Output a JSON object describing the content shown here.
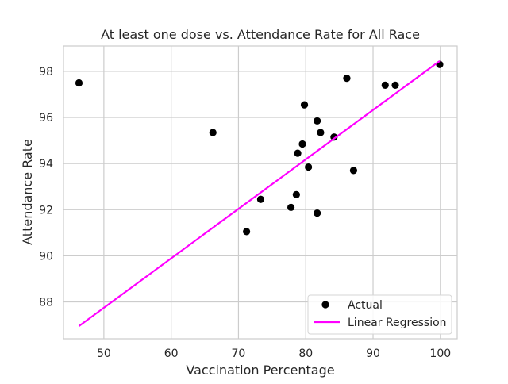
{
  "chart_data": {
    "type": "scatter",
    "title": "At least one dose vs. Attendance Rate for All Race",
    "xlabel": "Vaccination Percentage",
    "ylabel": "Attendance Rate",
    "xlim": [
      44,
      102.5
    ],
    "ylim": [
      86.4,
      99.1
    ],
    "xticks": [
      50,
      60,
      70,
      80,
      90,
      100
    ],
    "yticks": [
      88,
      90,
      92,
      94,
      96,
      98
    ],
    "grid": true,
    "legend_position": "bottom-right",
    "series": [
      {
        "name": "Actual",
        "kind": "scatter",
        "color": "#000000",
        "points": [
          {
            "x": 46.3,
            "y": 97.5
          },
          {
            "x": 66.2,
            "y": 95.35
          },
          {
            "x": 71.2,
            "y": 91.05
          },
          {
            "x": 73.3,
            "y": 92.45
          },
          {
            "x": 77.8,
            "y": 92.1
          },
          {
            "x": 78.6,
            "y": 92.65
          },
          {
            "x": 78.8,
            "y": 94.45
          },
          {
            "x": 79.5,
            "y": 94.85
          },
          {
            "x": 79.8,
            "y": 96.55
          },
          {
            "x": 80.4,
            "y": 93.85
          },
          {
            "x": 81.7,
            "y": 91.85
          },
          {
            "x": 81.7,
            "y": 95.85
          },
          {
            "x": 82.2,
            "y": 95.35
          },
          {
            "x": 84.2,
            "y": 95.15
          },
          {
            "x": 86.1,
            "y": 97.7
          },
          {
            "x": 87.1,
            "y": 93.7
          },
          {
            "x": 91.8,
            "y": 97.4
          },
          {
            "x": 93.3,
            "y": 97.4
          },
          {
            "x": 99.9,
            "y": 98.3
          }
        ]
      },
      {
        "name": "Linear Regression",
        "kind": "line",
        "color": "#ff00ff",
        "points": [
          {
            "x": 46.3,
            "y": 86.95
          },
          {
            "x": 99.9,
            "y": 98.45
          }
        ]
      }
    ]
  }
}
